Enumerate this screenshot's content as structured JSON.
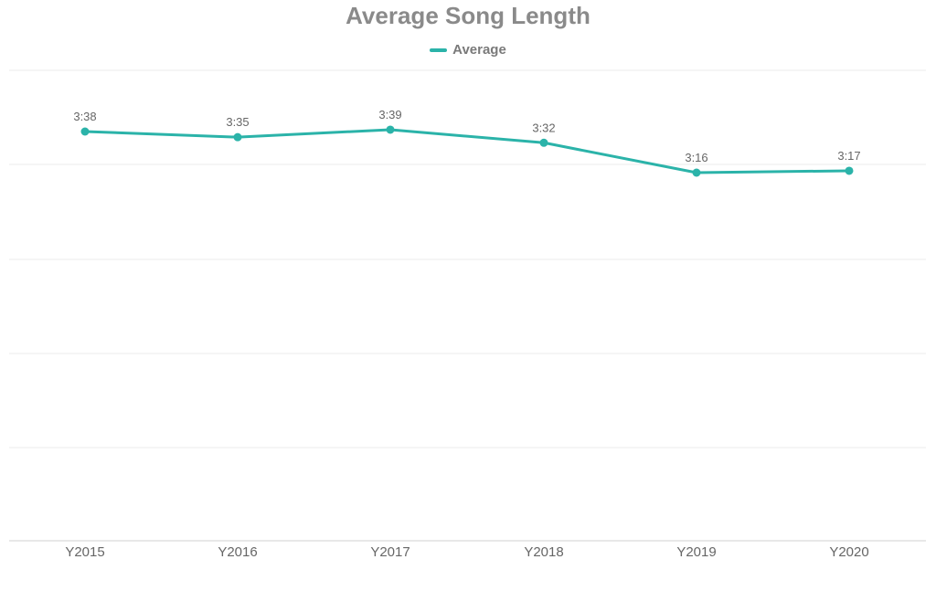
{
  "chart_data": {
    "type": "line",
    "title": "Average Song Length",
    "xlabel": "",
    "ylabel": "",
    "legend_position": "top",
    "grid": true,
    "categories": [
      "Y2015",
      "Y2016",
      "Y2017",
      "Y2018",
      "Y2019",
      "Y2020"
    ],
    "series": [
      {
        "name": "Average",
        "color": "#2bb3a9",
        "values_seconds": [
          218,
          215,
          219,
          212,
          196,
          197
        ],
        "labels": [
          "3:38",
          "3:35",
          "3:39",
          "3:32",
          "3:16",
          "3:17"
        ]
      }
    ]
  }
}
